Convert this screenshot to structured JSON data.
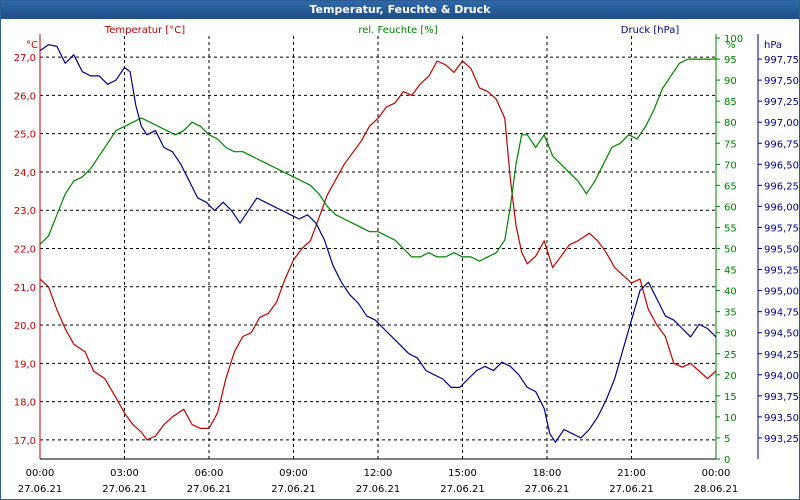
{
  "window": {
    "title": "Temperatur, Feuchte & Druck"
  },
  "colors": {
    "temperature": "#c00000",
    "humidity": "#008000",
    "pressure": "#00008b",
    "grid": "#000000"
  },
  "chart_data": {
    "type": "line",
    "title": "Temperatur, Feuchte & Druck",
    "x_ticks": [
      {
        "time": "00:00",
        "date": "27.06.21"
      },
      {
        "time": "03:00",
        "date": "27.06.21"
      },
      {
        "time": "06:00",
        "date": "27.06.21"
      },
      {
        "time": "09:00",
        "date": "27.06.21"
      },
      {
        "time": "12:00",
        "date": "27.06.21"
      },
      {
        "time": "15:00",
        "date": "27.06.21"
      },
      {
        "time": "18:00",
        "date": "27.06.21"
      },
      {
        "time": "21:00",
        "date": "27.06.21"
      },
      {
        "time": "00:00",
        "date": "28.06.21"
      }
    ],
    "x_unit": "hours",
    "xlim": [
      0,
      24
    ],
    "grid": true,
    "axes": {
      "temperature": {
        "label": "Temperatur [°C]",
        "unit": "°C",
        "ylim": [
          16.5,
          27.5
        ],
        "ticks": [
          "17,0",
          "18,0",
          "19,0",
          "20,0",
          "21,0",
          "22,0",
          "23,0",
          "24,0",
          "25,0",
          "26,0",
          "27,0"
        ]
      },
      "humidity": {
        "label": "rel. Feuchte [%]",
        "unit": "%",
        "ylim": [
          0,
          100
        ],
        "ticks": [
          "0",
          "5",
          "10",
          "15",
          "20",
          "25",
          "30",
          "35",
          "40",
          "45",
          "50",
          "55",
          "60",
          "65",
          "70",
          "75",
          "80",
          "85",
          "90",
          "95",
          "100"
        ]
      },
      "pressure": {
        "label": "Druck [hPa]",
        "unit": "hPa",
        "ylim": [
          993.0,
          998.0
        ],
        "ticks": [
          "993,25",
          "993,50",
          "993,75",
          "994,00",
          "994,25",
          "994,50",
          "994,75",
          "995,00",
          "995,25",
          "995,50",
          "995,75",
          "996,00",
          "996,25",
          "996,50",
          "996,75",
          "997,00",
          "997,25",
          "997,50",
          "997,75"
        ]
      }
    },
    "series": [
      {
        "name": "Temperatur [°C]",
        "axis": "temperature",
        "points": [
          [
            0.0,
            21.2
          ],
          [
            0.3,
            21.0
          ],
          [
            0.6,
            20.4
          ],
          [
            0.9,
            19.9
          ],
          [
            1.2,
            19.5
          ],
          [
            1.6,
            19.3
          ],
          [
            1.9,
            18.8
          ],
          [
            2.3,
            18.6
          ],
          [
            2.7,
            18.1
          ],
          [
            3.0,
            17.7
          ],
          [
            3.3,
            17.4
          ],
          [
            3.6,
            17.2
          ],
          [
            3.8,
            17.0
          ],
          [
            4.1,
            17.1
          ],
          [
            4.4,
            17.4
          ],
          [
            4.7,
            17.6
          ],
          [
            5.1,
            17.8
          ],
          [
            5.4,
            17.4
          ],
          [
            5.7,
            17.3
          ],
          [
            6.0,
            17.3
          ],
          [
            6.3,
            17.7
          ],
          [
            6.6,
            18.6
          ],
          [
            6.9,
            19.3
          ],
          [
            7.2,
            19.7
          ],
          [
            7.5,
            19.8
          ],
          [
            7.8,
            20.2
          ],
          [
            8.1,
            20.3
          ],
          [
            8.4,
            20.6
          ],
          [
            8.7,
            21.2
          ],
          [
            9.0,
            21.7
          ],
          [
            9.3,
            22.0
          ],
          [
            9.6,
            22.2
          ],
          [
            9.9,
            22.8
          ],
          [
            10.2,
            23.4
          ],
          [
            10.5,
            23.8
          ],
          [
            10.8,
            24.2
          ],
          [
            11.1,
            24.5
          ],
          [
            11.4,
            24.8
          ],
          [
            11.7,
            25.2
          ],
          [
            12.0,
            25.4
          ],
          [
            12.3,
            25.7
          ],
          [
            12.6,
            25.8
          ],
          [
            12.9,
            26.1
          ],
          [
            13.2,
            26.0
          ],
          [
            13.5,
            26.3
          ],
          [
            13.8,
            26.5
          ],
          [
            14.1,
            26.9
          ],
          [
            14.4,
            26.8
          ],
          [
            14.7,
            26.6
          ],
          [
            15.0,
            26.9
          ],
          [
            15.3,
            26.7
          ],
          [
            15.6,
            26.2
          ],
          [
            15.9,
            26.1
          ],
          [
            16.2,
            25.9
          ],
          [
            16.5,
            25.4
          ],
          [
            16.7,
            23.8
          ],
          [
            16.9,
            22.6
          ],
          [
            17.1,
            21.9
          ],
          [
            17.3,
            21.6
          ],
          [
            17.6,
            21.8
          ],
          [
            17.9,
            22.2
          ],
          [
            18.2,
            21.5
          ],
          [
            18.5,
            21.8
          ],
          [
            18.8,
            22.1
          ],
          [
            19.1,
            22.2
          ],
          [
            19.5,
            22.4
          ],
          [
            19.8,
            22.2
          ],
          [
            20.1,
            21.9
          ],
          [
            20.4,
            21.5
          ],
          [
            20.7,
            21.3
          ],
          [
            21.0,
            21.1
          ],
          [
            21.3,
            21.2
          ],
          [
            21.6,
            20.4
          ],
          [
            21.9,
            20.0
          ],
          [
            22.2,
            19.7
          ],
          [
            22.5,
            19.0
          ],
          [
            22.8,
            18.9
          ],
          [
            23.1,
            19.0
          ],
          [
            23.4,
            18.8
          ],
          [
            23.7,
            18.6
          ],
          [
            24.0,
            18.8
          ]
        ]
      },
      {
        "name": "rel. Feuchte [%]",
        "axis": "humidity",
        "points": [
          [
            0.0,
            51
          ],
          [
            0.3,
            53
          ],
          [
            0.6,
            58
          ],
          [
            0.9,
            63
          ],
          [
            1.2,
            66
          ],
          [
            1.5,
            67
          ],
          [
            1.8,
            69
          ],
          [
            2.1,
            72
          ],
          [
            2.4,
            75
          ],
          [
            2.7,
            78
          ],
          [
            3.0,
            79
          ],
          [
            3.3,
            80
          ],
          [
            3.6,
            81
          ],
          [
            3.9,
            80
          ],
          [
            4.2,
            79
          ],
          [
            4.5,
            78
          ],
          [
            4.8,
            77
          ],
          [
            5.1,
            78
          ],
          [
            5.4,
            80
          ],
          [
            5.7,
            79
          ],
          [
            6.0,
            77
          ],
          [
            6.3,
            76
          ],
          [
            6.6,
            74
          ],
          [
            6.9,
            73
          ],
          [
            7.2,
            73
          ],
          [
            7.5,
            72
          ],
          [
            7.8,
            71
          ],
          [
            8.1,
            70
          ],
          [
            8.4,
            69
          ],
          [
            8.7,
            68
          ],
          [
            9.0,
            67
          ],
          [
            9.3,
            66
          ],
          [
            9.6,
            65
          ],
          [
            9.9,
            63
          ],
          [
            10.2,
            60
          ],
          [
            10.5,
            58
          ],
          [
            10.8,
            57
          ],
          [
            11.1,
            56
          ],
          [
            11.4,
            55
          ],
          [
            11.7,
            54
          ],
          [
            12.0,
            54
          ],
          [
            12.3,
            53
          ],
          [
            12.6,
            52
          ],
          [
            12.9,
            50
          ],
          [
            13.2,
            48
          ],
          [
            13.5,
            48
          ],
          [
            13.8,
            49
          ],
          [
            14.1,
            48
          ],
          [
            14.4,
            48
          ],
          [
            14.7,
            49
          ],
          [
            15.0,
            48
          ],
          [
            15.3,
            48
          ],
          [
            15.6,
            47
          ],
          [
            15.9,
            48
          ],
          [
            16.2,
            49
          ],
          [
            16.5,
            52
          ],
          [
            16.7,
            60
          ],
          [
            16.9,
            70
          ],
          [
            17.1,
            77
          ],
          [
            17.3,
            77
          ],
          [
            17.6,
            74
          ],
          [
            17.9,
            77
          ],
          [
            18.2,
            72
          ],
          [
            18.5,
            70
          ],
          [
            18.8,
            68
          ],
          [
            19.1,
            66
          ],
          [
            19.4,
            63
          ],
          [
            19.7,
            66
          ],
          [
            20.0,
            70
          ],
          [
            20.3,
            74
          ],
          [
            20.6,
            75
          ],
          [
            20.9,
            77
          ],
          [
            21.2,
            76
          ],
          [
            21.5,
            79
          ],
          [
            21.8,
            83
          ],
          [
            22.1,
            88
          ],
          [
            22.4,
            91
          ],
          [
            22.7,
            94
          ],
          [
            23.0,
            95
          ],
          [
            23.3,
            95
          ],
          [
            23.6,
            95
          ],
          [
            24.0,
            95
          ]
        ]
      },
      {
        "name": "Druck [hPa]",
        "axis": "pressure",
        "points": [
          [
            0.0,
            997.85
          ],
          [
            0.3,
            997.92
          ],
          [
            0.6,
            997.9
          ],
          [
            0.9,
            997.7
          ],
          [
            1.2,
            997.8
          ],
          [
            1.5,
            997.6
          ],
          [
            1.8,
            997.55
          ],
          [
            2.1,
            997.55
          ],
          [
            2.4,
            997.45
          ],
          [
            2.7,
            997.5
          ],
          [
            3.0,
            997.65
          ],
          [
            3.2,
            997.6
          ],
          [
            3.4,
            997.2
          ],
          [
            3.6,
            996.95
          ],
          [
            3.8,
            996.85
          ],
          [
            4.1,
            996.9
          ],
          [
            4.4,
            996.7
          ],
          [
            4.7,
            996.65
          ],
          [
            5.0,
            996.5
          ],
          [
            5.3,
            996.3
          ],
          [
            5.6,
            996.1
          ],
          [
            5.9,
            996.05
          ],
          [
            6.2,
            995.95
          ],
          [
            6.5,
            996.05
          ],
          [
            6.8,
            995.95
          ],
          [
            7.1,
            995.8
          ],
          [
            7.4,
            995.95
          ],
          [
            7.7,
            996.1
          ],
          [
            8.0,
            996.05
          ],
          [
            8.3,
            996.0
          ],
          [
            8.6,
            995.95
          ],
          [
            8.9,
            995.9
          ],
          [
            9.2,
            995.85
          ],
          [
            9.5,
            995.9
          ],
          [
            9.8,
            995.8
          ],
          [
            10.1,
            995.6
          ],
          [
            10.4,
            995.3
          ],
          [
            10.7,
            995.1
          ],
          [
            11.0,
            994.95
          ],
          [
            11.3,
            994.85
          ],
          [
            11.6,
            994.7
          ],
          [
            11.9,
            994.65
          ],
          [
            12.2,
            994.55
          ],
          [
            12.5,
            994.45
          ],
          [
            12.8,
            994.35
          ],
          [
            13.1,
            994.25
          ],
          [
            13.4,
            994.2
          ],
          [
            13.7,
            994.05
          ],
          [
            14.0,
            994.0
          ],
          [
            14.3,
            993.95
          ],
          [
            14.6,
            993.85
          ],
          [
            14.9,
            993.85
          ],
          [
            15.2,
            993.95
          ],
          [
            15.5,
            994.05
          ],
          [
            15.8,
            994.1
          ],
          [
            16.1,
            994.05
          ],
          [
            16.4,
            994.15
          ],
          [
            16.7,
            994.1
          ],
          [
            17.0,
            994.0
          ],
          [
            17.3,
            993.85
          ],
          [
            17.6,
            993.8
          ],
          [
            17.9,
            993.6
          ],
          [
            18.1,
            993.3
          ],
          [
            18.3,
            993.2
          ],
          [
            18.6,
            993.35
          ],
          [
            18.9,
            993.3
          ],
          [
            19.2,
            993.25
          ],
          [
            19.5,
            993.35
          ],
          [
            19.8,
            993.5
          ],
          [
            20.1,
            993.7
          ],
          [
            20.4,
            993.95
          ],
          [
            20.7,
            994.3
          ],
          [
            21.0,
            994.65
          ],
          [
            21.3,
            995.0
          ],
          [
            21.6,
            995.1
          ],
          [
            21.9,
            994.9
          ],
          [
            22.2,
            994.7
          ],
          [
            22.5,
            994.65
          ],
          [
            22.8,
            994.55
          ],
          [
            23.1,
            994.45
          ],
          [
            23.4,
            994.6
          ],
          [
            23.7,
            994.55
          ],
          [
            24.0,
            994.45
          ]
        ]
      }
    ]
  }
}
